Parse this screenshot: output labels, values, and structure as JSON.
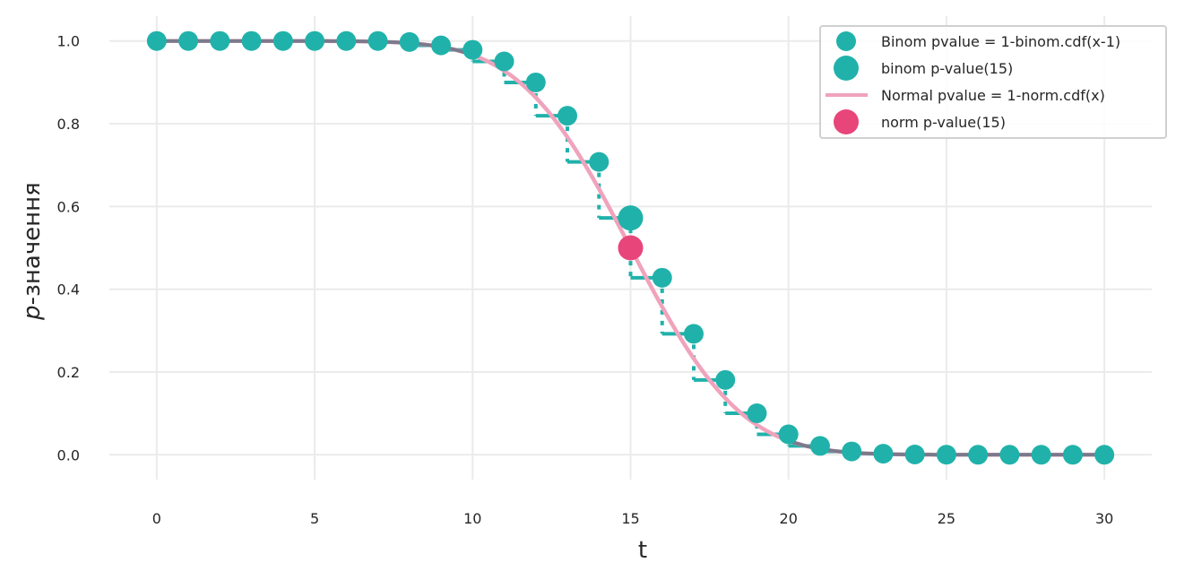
{
  "chart_data": {
    "type": "scatter",
    "xlabel": "t",
    "ylabel": "p-значення",
    "ylabel_italic_prefix": "p",
    "ylabel_rest": "-значення",
    "xlim": [
      -1.5,
      31.5
    ],
    "ylim": [
      -0.06,
      1.06
    ],
    "x_ticks": [
      0,
      5,
      10,
      15,
      20,
      25,
      30
    ],
    "y_ticks": [
      0.0,
      0.2,
      0.4,
      0.6,
      0.8,
      1.0
    ],
    "y_tick_labels": [
      "0.0",
      "0.2",
      "0.4",
      "0.6",
      "0.8",
      "1.0"
    ],
    "grid": true,
    "legend_position": "top-right",
    "colors": {
      "binom": "#20b2aa",
      "normal_line": "#f0a3bc",
      "norm_point": "#e8457a",
      "gray_line": "#7a7a8c",
      "grid": "#ebebeb"
    },
    "series": [
      {
        "name": "Binom pvalue = 1-binom.cdf(x-1)",
        "kind": "scatter",
        "x": [
          0,
          1,
          2,
          3,
          4,
          5,
          6,
          7,
          8,
          9,
          10,
          11,
          12,
          13,
          14,
          15,
          16,
          17,
          18,
          19,
          20,
          21,
          22,
          23,
          24,
          25,
          26,
          27,
          28,
          29,
          30
        ],
        "y": [
          1.0,
          1.0,
          1.0,
          1.0,
          1.0,
          1.0,
          1.0,
          1.0,
          0.9974,
          0.9893,
          0.9786,
          0.9506,
          0.8998,
          0.8192,
          0.7077,
          0.5722,
          0.4278,
          0.2923,
          0.1808,
          0.1002,
          0.0494,
          0.0214,
          0.0081,
          0.0026,
          0.0007,
          0.0002,
          0.0,
          0.0,
          0.0,
          0.0,
          0.0
        ]
      },
      {
        "name": "binom p-value(15)",
        "kind": "scatter",
        "x": [
          15
        ],
        "y": [
          0.5722
        ]
      },
      {
        "name": "Normal pvalue = 1-norm.cdf(x)",
        "kind": "line",
        "mean": 15,
        "sd": 2.7386
      },
      {
        "name": "norm p-value(15)",
        "kind": "scatter",
        "x": [
          15
        ],
        "y": [
          0.5
        ]
      }
    ],
    "legend": [
      "Binom pvalue = 1-binom.cdf(x-1)",
      "binom p-value(15)",
      "Normal pvalue = 1-norm.cdf(x)",
      "norm p-value(15)"
    ]
  }
}
